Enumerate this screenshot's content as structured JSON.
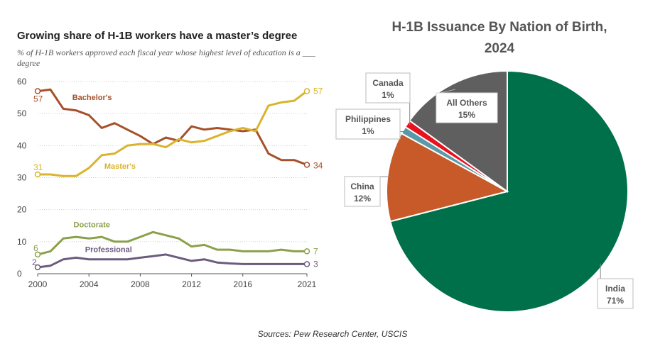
{
  "source": "Sources: Pew Research Center, USCIS",
  "chart_data": [
    {
      "type": "line",
      "title": "Growing share of H-1B workers have a master’s degree",
      "subtitle": "% of H-1B workers approved each fiscal year whose highest level of education is a ___ degree",
      "x": [
        2000,
        2001,
        2002,
        2003,
        2004,
        2005,
        2006,
        2007,
        2008,
        2009,
        2010,
        2011,
        2012,
        2013,
        2014,
        2015,
        2016,
        2017,
        2018,
        2019,
        2020,
        2021
      ],
      "xticks": [
        "2000",
        "2004",
        "2008",
        "2012",
        "2016",
        "2021"
      ],
      "yticks": [
        "0",
        "10",
        "20",
        "30",
        "40",
        "50",
        "60"
      ],
      "ylim": [
        0,
        60
      ],
      "xlim": [
        2000,
        2021
      ],
      "grid": true,
      "series": [
        {
          "name": "Bachelor's",
          "color": "#a5502a",
          "values": [
            57,
            57.5,
            51.5,
            51,
            49.5,
            45.5,
            47,
            45,
            43,
            40.5,
            42.5,
            41.5,
            46,
            45,
            45.5,
            45,
            44.5,
            45,
            37.5,
            35.5,
            35.5,
            34
          ],
          "start_label": "57",
          "end_label": "34"
        },
        {
          "name": "Master's",
          "color": "#d9b42c",
          "values": [
            31,
            31,
            30.5,
            30.5,
            33,
            37,
            37.5,
            40,
            40.5,
            40.5,
            39.5,
            42,
            41,
            41.5,
            43,
            44.5,
            45.5,
            44.5,
            52.5,
            53.5,
            54,
            57
          ],
          "start_label": "31",
          "end_label": "57"
        },
        {
          "name": "Doctorate",
          "color": "#8ba04a",
          "values": [
            6,
            7,
            11,
            11.5,
            11,
            11.5,
            10,
            10,
            11.5,
            13,
            12,
            11,
            8.5,
            9,
            7.5,
            7.5,
            7,
            7,
            7,
            7.5,
            7,
            7
          ],
          "start_label": "6",
          "end_label": "7"
        },
        {
          "name": "Professional",
          "color": "#6d5b7e",
          "values": [
            2,
            2.5,
            4.5,
            5,
            4.5,
            4.5,
            4.5,
            4.5,
            5,
            5.5,
            6,
            5,
            4,
            4.5,
            3.5,
            3.2,
            3,
            3,
            3,
            3,
            3,
            3
          ],
          "start_label": "2",
          "end_label": "3"
        }
      ]
    },
    {
      "type": "pie",
      "title": "H-1B Issuance By Nation of Birth, 2024",
      "title_lines": [
        "H-1B Issuance By Nation of Birth,",
        "2024"
      ],
      "slices": [
        {
          "label": "India",
          "value": 71,
          "value_label": "71%",
          "color": "#00704a"
        },
        {
          "label": "China",
          "value": 12,
          "value_label": "12%",
          "color": "#c85a2a"
        },
        {
          "label": "Philippines",
          "value": 1,
          "value_label": "1%",
          "color": "#5a9aa8"
        },
        {
          "label": "Canada",
          "value": 1,
          "value_label": "1%",
          "color": "#e8111e"
        },
        {
          "label": "All Others",
          "value": 15,
          "value_label": "15%",
          "color": "#5f5f5f"
        }
      ]
    }
  ]
}
